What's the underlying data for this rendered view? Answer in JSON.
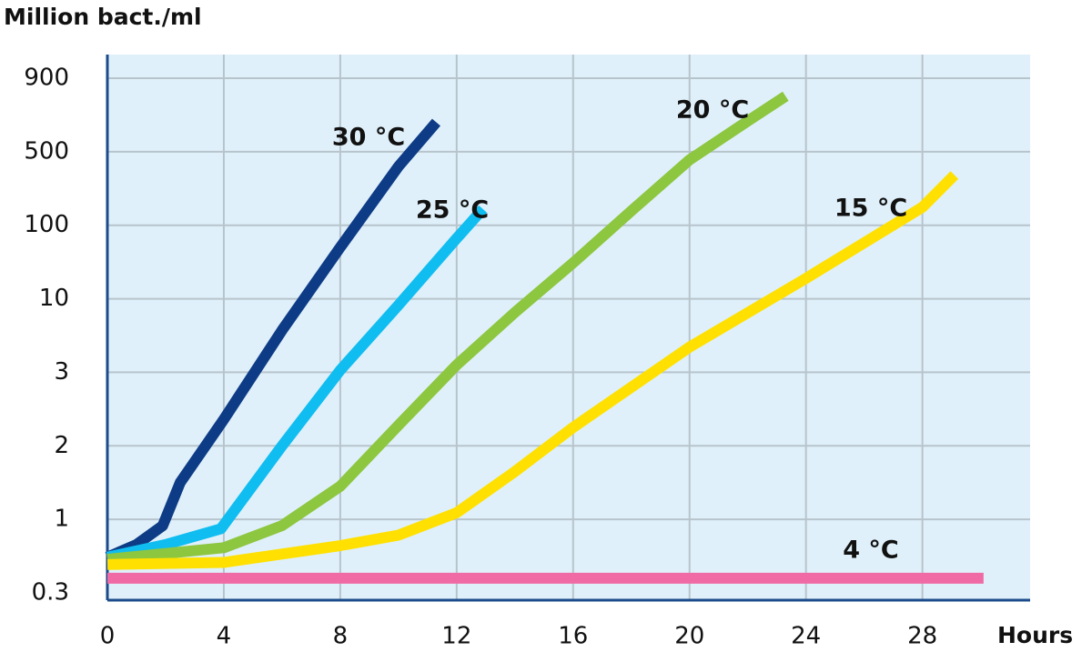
{
  "chart_data": {
    "type": "line",
    "y_label": "Million bact./ml",
    "x_label": "Hours",
    "xlim": [
      0,
      31.7
    ],
    "xticks": [
      0,
      4,
      8,
      12,
      16,
      20,
      24,
      28
    ],
    "ylim": [
      0.3,
      900
    ],
    "yticks": [
      0.3,
      1,
      2,
      3,
      10,
      100,
      500,
      900
    ],
    "grid": true,
    "background": "#dff0fa",
    "series": [
      {
        "name": "30 °C",
        "color": "#0d3b85",
        "x": [
          0,
          1,
          1.9,
          2.5,
          4,
          6,
          8,
          10,
          11.3
        ],
        "values": [
          0.64,
          0.76,
          0.94,
          1.5,
          2.36,
          7.0,
          73,
          420,
          660
        ]
      },
      {
        "name": "25 °C",
        "color": "#10bdf0",
        "x": [
          0,
          2,
          3.9,
          6,
          8,
          10,
          12,
          12.9
        ],
        "values": [
          0.64,
          0.76,
          0.91,
          2.0,
          3.2,
          9.4,
          84,
          188
        ]
      },
      {
        "name": "20 °C",
        "color": "#8dc63f",
        "x": [
          0,
          4,
          6,
          8,
          10,
          12,
          14,
          16,
          18,
          20,
          22,
          23.3
        ],
        "values": [
          0.62,
          0.73,
          0.94,
          1.45,
          2.28,
          3.7,
          8.7,
          54,
          178,
          456,
          667,
          802
        ]
      },
      {
        "name": "15 °C",
        "color": "#ffe000",
        "x": [
          0,
          4,
          8,
          10,
          12,
          14,
          16,
          20,
          24,
          28,
          29.1
        ],
        "values": [
          0.57,
          0.59,
          0.75,
          0.85,
          1.09,
          1.65,
          2.25,
          5.4,
          35,
          198,
          373
        ]
      },
      {
        "name": "4 °C",
        "color": "#f06aa5",
        "x": [
          0,
          30.1
        ],
        "values": [
          0.44,
          0.44
        ]
      }
    ]
  }
}
